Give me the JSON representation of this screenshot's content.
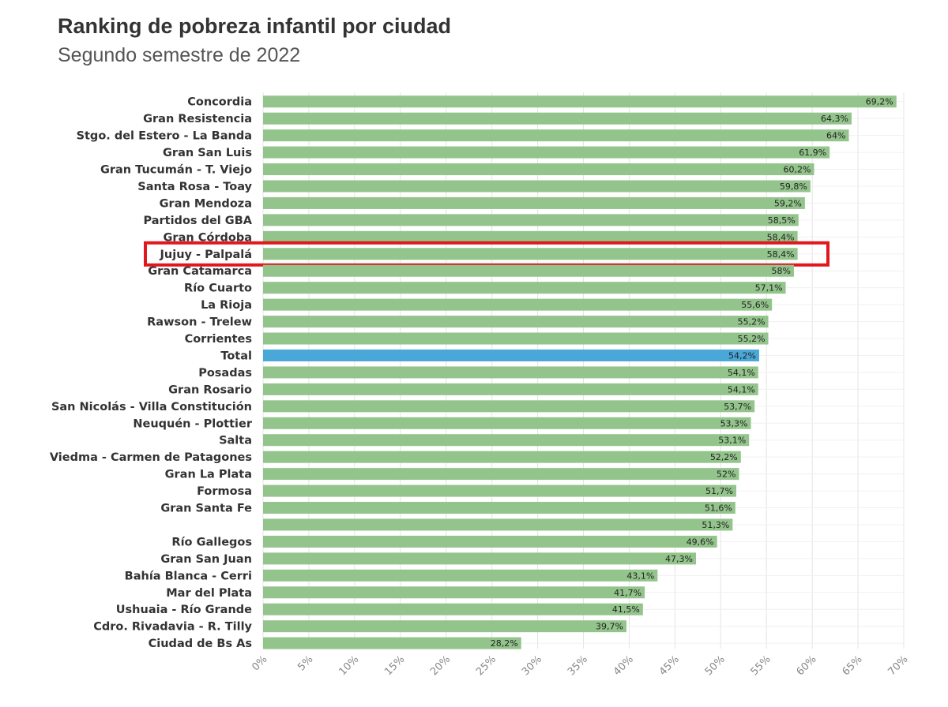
{
  "title": "Ranking de pobreza infantil por ciudad",
  "subtitle": "Segundo semestre de 2022",
  "colors": {
    "bar": "#93c48b",
    "highlight_bar": "#4aa8d8",
    "highlight_box": "#e0171d",
    "grid": "#e4e4e4"
  },
  "chart_data": {
    "type": "bar",
    "orientation": "horizontal",
    "title": "Ranking de pobreza infantil por ciudad",
    "subtitle": "Segundo semestre de 2022",
    "categories": [
      "Concordia",
      "Gran Resistencia",
      "Stgo. del Estero - La Banda",
      "Gran San Luis",
      "Gran Tucumán - T. Viejo",
      "Santa Rosa - Toay",
      "Gran Mendoza",
      "Partidos del GBA",
      "Gran Córdoba",
      "Jujuy - Palpalá",
      "Gran Catamarca",
      "Río Cuarto",
      "La Rioja",
      "Rawson - Trelew",
      "Corrientes",
      "Total",
      "Posadas",
      "Gran Rosario",
      "San Nicolás - Villa Constitución",
      "Neuquén - Plottier",
      "Salta",
      "Viedma - Carmen de Patagones",
      "Gran La Plata",
      "Formosa",
      "Gran Santa Fe",
      "",
      "Río Gallegos",
      "Gran San Juan",
      "Bahía Blanca - Cerri",
      "Mar del Plata",
      "Ushuaia - Río Grande",
      "Cdro. Rivadavia - R. Tilly",
      "Ciudad de Bs As"
    ],
    "values": [
      69.2,
      64.3,
      64,
      61.9,
      60.2,
      59.8,
      59.2,
      58.5,
      58.4,
      58.4,
      58,
      57.1,
      55.6,
      55.2,
      55.2,
      54.2,
      54.1,
      54.1,
      53.7,
      53.3,
      53.1,
      52.2,
      52,
      51.7,
      51.6,
      51.3,
      49.6,
      47.3,
      43.1,
      41.7,
      41.5,
      39.7,
      28.2
    ],
    "value_labels": [
      "69,2%",
      "64,3%",
      "64%",
      "61,9%",
      "60,2%",
      "59,8%",
      "59,2%",
      "58,5%",
      "58,4%",
      "58,4%",
      "58%",
      "57,1%",
      "55,6%",
      "55,2%",
      "55,2%",
      "54,2%",
      "54,1%",
      "54,1%",
      "53,7%",
      "53,3%",
      "53,1%",
      "52,2%",
      "52%",
      "51,7%",
      "51,6%",
      "51,3%",
      "49,6%",
      "47,3%",
      "43,1%",
      "41,7%",
      "41,5%",
      "39,7%",
      "28,2%"
    ],
    "highlight_category": "Total",
    "boxed_category": "Jujuy - Palpalá",
    "xlim": [
      0,
      70
    ],
    "x_ticks": [
      "0%",
      "5%",
      "10%",
      "15%",
      "20%",
      "25%",
      "30%",
      "35%",
      "40%",
      "45%",
      "50%",
      "55%",
      "60%",
      "65%",
      "70%"
    ],
    "grid": true
  }
}
